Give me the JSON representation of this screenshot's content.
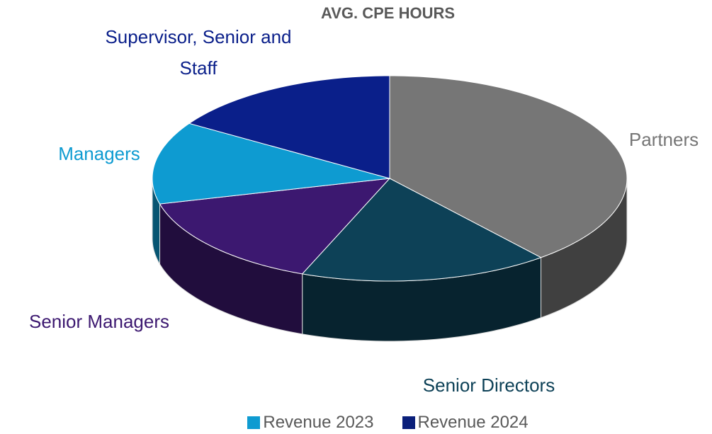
{
  "chart_data": {
    "type": "pie3d",
    "title": "AVG. CPE HOURS",
    "categories": [
      "Partners",
      "Senior Directors",
      "Senior Managers",
      "Managers",
      "Supervisor, Senior and Staff"
    ],
    "values": [
      39,
      17,
      15,
      13,
      16
    ],
    "colors": [
      "#767676",
      "#0d4157",
      "#3c1870",
      "#0e9bd1",
      "#0a1f8a"
    ],
    "legend": [
      {
        "name": "Revenue 2023",
        "color": "#0e9bd1"
      },
      {
        "name": "Revenue 2024",
        "color": "#0a1f7a"
      }
    ]
  }
}
